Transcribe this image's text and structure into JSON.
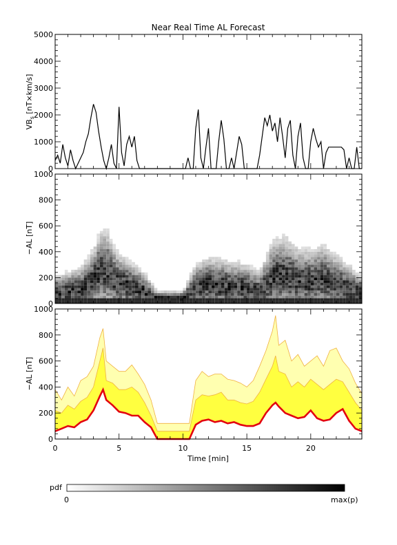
{
  "title": "Near Real Time AL Forecast",
  "colors": {
    "axis": "#000000",
    "median": "#e3000f",
    "band_outer": "#f0b040",
    "band_fill": "#ffff40",
    "band_light": "#ffffb0"
  },
  "chart_data": [
    {
      "type": "line",
      "ylabel": "VB_s [nT×km/s]",
      "ylabel_main": "VB",
      "ylabel_sub": "s",
      "ylabel_rest": " [nT×km/s]",
      "xlim": [
        0,
        24
      ],
      "ylim": [
        0,
        5000
      ],
      "yticks": [
        "0",
        "1000",
        "2000",
        "3000",
        "4000",
        "5000"
      ],
      "x": [
        0,
        0.2,
        0.4,
        0.6,
        0.8,
        1.0,
        1.2,
        1.4,
        1.6,
        1.8,
        2.0,
        2.2,
        2.4,
        2.6,
        2.8,
        3.0,
        3.2,
        3.4,
        3.6,
        3.8,
        4.0,
        4.2,
        4.4,
        4.6,
        4.8,
        5.0,
        5.2,
        5.4,
        5.6,
        5.8,
        6.0,
        6.2,
        6.4,
        6.6,
        6.8,
        7.0,
        7.5,
        8.0,
        9.0,
        10.0,
        10.2,
        10.4,
        10.6,
        10.8,
        11.0,
        11.2,
        11.4,
        11.6,
        11.8,
        12.0,
        12.2,
        12.4,
        12.6,
        12.8,
        13.0,
        13.2,
        13.4,
        13.6,
        13.8,
        14.0,
        14.2,
        14.4,
        14.6,
        14.8,
        15.0,
        15.2,
        15.4,
        15.6,
        15.8,
        16.0,
        16.2,
        16.4,
        16.6,
        16.8,
        17.0,
        17.2,
        17.4,
        17.6,
        17.8,
        18.0,
        18.2,
        18.4,
        18.6,
        18.8,
        19.0,
        19.2,
        19.4,
        19.6,
        19.8,
        20.0,
        20.2,
        20.4,
        20.6,
        20.8,
        21.0,
        21.2,
        21.4,
        21.6,
        21.8,
        22.0,
        22.2,
        22.4,
        22.6,
        22.8,
        23.0,
        23.2,
        23.4,
        23.6,
        23.8,
        24.0
      ],
      "y": [
        300,
        500,
        200,
        900,
        400,
        100,
        700,
        300,
        0,
        200,
        400,
        600,
        1000,
        1300,
        1900,
        2400,
        2100,
        1400,
        800,
        300,
        0,
        400,
        900,
        200,
        0,
        2300,
        600,
        100,
        900,
        1200,
        800,
        1200,
        300,
        0,
        0,
        0,
        0,
        0,
        0,
        0,
        0,
        400,
        0,
        0,
        1500,
        2200,
        400,
        0,
        800,
        1500,
        0,
        0,
        0,
        1000,
        1800,
        1100,
        0,
        0,
        400,
        0,
        600,
        1200,
        900,
        0,
        0,
        0,
        0,
        0,
        0,
        500,
        1200,
        1900,
        1600,
        2000,
        1400,
        1700,
        1000,
        1900,
        1200,
        400,
        1500,
        1800,
        500,
        0,
        1200,
        1700,
        400,
        0,
        0,
        1000,
        1500,
        1100,
        800,
        1000,
        0,
        600,
        800,
        800,
        800,
        800,
        800,
        800,
        700,
        0,
        400,
        0,
        0,
        800,
        0,
        0
      ],
      "annotations": []
    },
    {
      "type": "heatmap",
      "ylabel": "−AL [nT]",
      "xlim": [
        0,
        24
      ],
      "ylim": [
        0,
        1000
      ],
      "yticks": [
        "0",
        "200",
        "400",
        "600",
        "800",
        "1000"
      ],
      "columns": 96,
      "profile_x": [
        0,
        2,
        3,
        3.5,
        4,
        4.5,
        5,
        5.5,
        6,
        7,
        8,
        10,
        11,
        12,
        13,
        14,
        15,
        16,
        17,
        18,
        19,
        20,
        21,
        22,
        23,
        24
      ],
      "profile_mu": [
        80,
        110,
        180,
        250,
        260,
        200,
        160,
        150,
        130,
        90,
        40,
        40,
        120,
        150,
        140,
        130,
        120,
        90,
        200,
        220,
        180,
        170,
        190,
        150,
        110,
        80
      ],
      "profile_sd": [
        70,
        90,
        130,
        160,
        170,
        140,
        120,
        110,
        100,
        80,
        30,
        30,
        100,
        110,
        110,
        100,
        100,
        80,
        150,
        160,
        130,
        130,
        140,
        120,
        100,
        70
      ]
    },
    {
      "type": "area",
      "ylabel": "−AL [nT]",
      "xlabel": "Time [min]",
      "xlim": [
        0,
        24
      ],
      "ylim": [
        0,
        1000
      ],
      "xticks": [
        "0",
        "5",
        "10",
        "15",
        "20"
      ],
      "xtick_values": [
        0,
        5,
        10,
        15,
        20
      ],
      "yticks": [
        "0",
        "200",
        "400",
        "600",
        "800",
        "1000"
      ],
      "x": [
        0,
        0.5,
        1,
        1.5,
        2,
        2.5,
        3,
        3.5,
        3.75,
        4,
        4.5,
        5,
        5.5,
        6,
        6.5,
        7,
        7.5,
        8,
        8.5,
        9,
        9.5,
        10,
        10.5,
        11,
        11.5,
        12,
        12.5,
        13,
        13.5,
        14,
        14.5,
        15,
        15.5,
        16,
        16.5,
        17,
        17.25,
        17.5,
        18,
        18.5,
        19,
        19.5,
        20,
        20.5,
        21,
        21.5,
        22,
        22.5,
        23,
        23.5,
        24
      ],
      "median": [
        60,
        80,
        100,
        90,
        130,
        150,
        220,
        330,
        380,
        300,
        260,
        210,
        200,
        180,
        180,
        130,
        90,
        0,
        0,
        0,
        0,
        0,
        0,
        110,
        140,
        150,
        130,
        140,
        120,
        130,
        110,
        100,
        100,
        120,
        200,
        260,
        280,
        250,
        200,
        180,
        160,
        170,
        220,
        160,
        140,
        150,
        200,
        230,
        140,
        80,
        60
      ],
      "upper": [
        380,
        300,
        400,
        330,
        450,
        480,
        560,
        780,
        850,
        600,
        560,
        520,
        520,
        570,
        500,
        420,
        300,
        120,
        120,
        120,
        120,
        120,
        120,
        450,
        520,
        480,
        500,
        500,
        460,
        450,
        430,
        400,
        450,
        560,
        680,
        830,
        950,
        720,
        760,
        600,
        650,
        560,
        600,
        640,
        560,
        680,
        700,
        600,
        540,
        430,
        350
      ],
      "q75": [
        220,
        200,
        260,
        230,
        290,
        320,
        400,
        600,
        700,
        450,
        430,
        380,
        380,
        400,
        360,
        280,
        180,
        60,
        60,
        60,
        60,
        60,
        60,
        300,
        340,
        330,
        340,
        360,
        300,
        300,
        280,
        270,
        290,
        360,
        460,
        560,
        640,
        520,
        500,
        400,
        440,
        400,
        460,
        420,
        380,
        420,
        460,
        440,
        360,
        280,
        220
      ]
    }
  ],
  "colorbar": {
    "label": "pdf",
    "min_label": "0",
    "max_label": "max(p)"
  }
}
